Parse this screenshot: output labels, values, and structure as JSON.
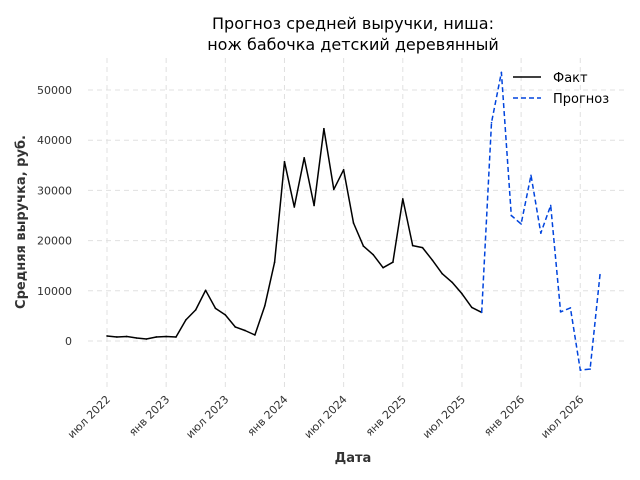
{
  "chart_data": {
    "type": "line",
    "title": [
      "Прогноз средней выручки, ниша:",
      "нож бабочка детский деревянный"
    ],
    "xlabel": "Дата",
    "ylabel": "Средняя выручка, руб.",
    "ylim": [
      -9000,
      56500
    ],
    "yticks": [
      0,
      10000,
      20000,
      30000,
      40000,
      50000
    ],
    "xticks": [
      {
        "month": 0,
        "label": "июл 2022"
      },
      {
        "month": 6,
        "label": "янв 2023"
      },
      {
        "month": 12,
        "label": "июл 2023"
      },
      {
        "month": 18,
        "label": "янв 2024"
      },
      {
        "month": 24,
        "label": "июл 2024"
      },
      {
        "month": 30,
        "label": "янв 2025"
      },
      {
        "month": 36,
        "label": "июл 2025"
      },
      {
        "month": 42,
        "label": "янв 2026"
      },
      {
        "month": 48,
        "label": "июл 2026"
      }
    ],
    "grid": true,
    "legend_position": "top-right",
    "series": [
      {
        "name": "Факт",
        "color": "#000000",
        "style": "solid",
        "start_month": 0,
        "values": [
          1000,
          800,
          900,
          600,
          400,
          800,
          900,
          800,
          4200,
          6200,
          10100,
          6500,
          5200,
          2800,
          2100,
          1200,
          7000,
          15700,
          35700,
          26700,
          36500,
          27000,
          42300,
          30200,
          34100,
          23500,
          18900,
          17200,
          14600,
          15700,
          28300,
          19000,
          18600,
          16100,
          13400,
          11700,
          9400,
          6700,
          5700
        ]
      },
      {
        "name": "Прогноз",
        "color": "#0044dd",
        "style": "dashed",
        "start_month": 38,
        "values": [
          5700,
          43500,
          53500,
          25000,
          23300,
          33000,
          21500,
          27000,
          5800,
          6600,
          -5800,
          -5600,
          13200
        ]
      }
    ]
  }
}
